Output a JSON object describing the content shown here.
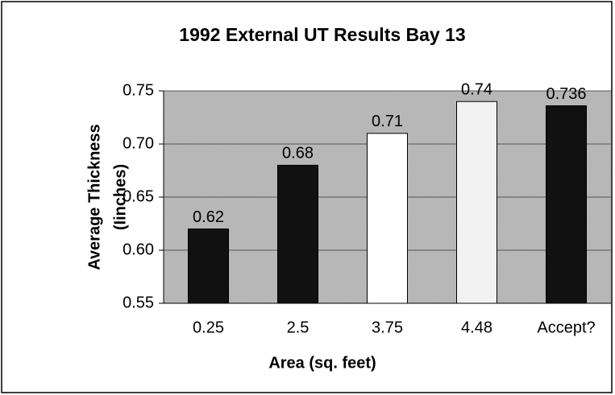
{
  "chart_data": {
    "type": "bar",
    "title": "1992 External UT Results Bay 13",
    "xlabel": "Area (sq. feet)",
    "ylabel": [
      "Average Thickness",
      "(Iinches)"
    ],
    "categories": [
      "0.25",
      "2.5",
      "3.75",
      "4.48",
      "Accept?"
    ],
    "values": [
      0.62,
      0.68,
      0.71,
      0.74,
      0.736
    ],
    "colors": [
      "#111111",
      "#111111",
      "#ffffff",
      "#f2f2f2",
      "#111111"
    ],
    "ylim": [
      0.55,
      0.75
    ],
    "yticks": [
      0.55,
      {
        "value": 0.6,
        "label": "0.60"
      },
      0.65,
      {
        "value": 0.7,
        "label": "0.70"
      },
      0.75
    ],
    "grid": true,
    "data_labels": true
  }
}
